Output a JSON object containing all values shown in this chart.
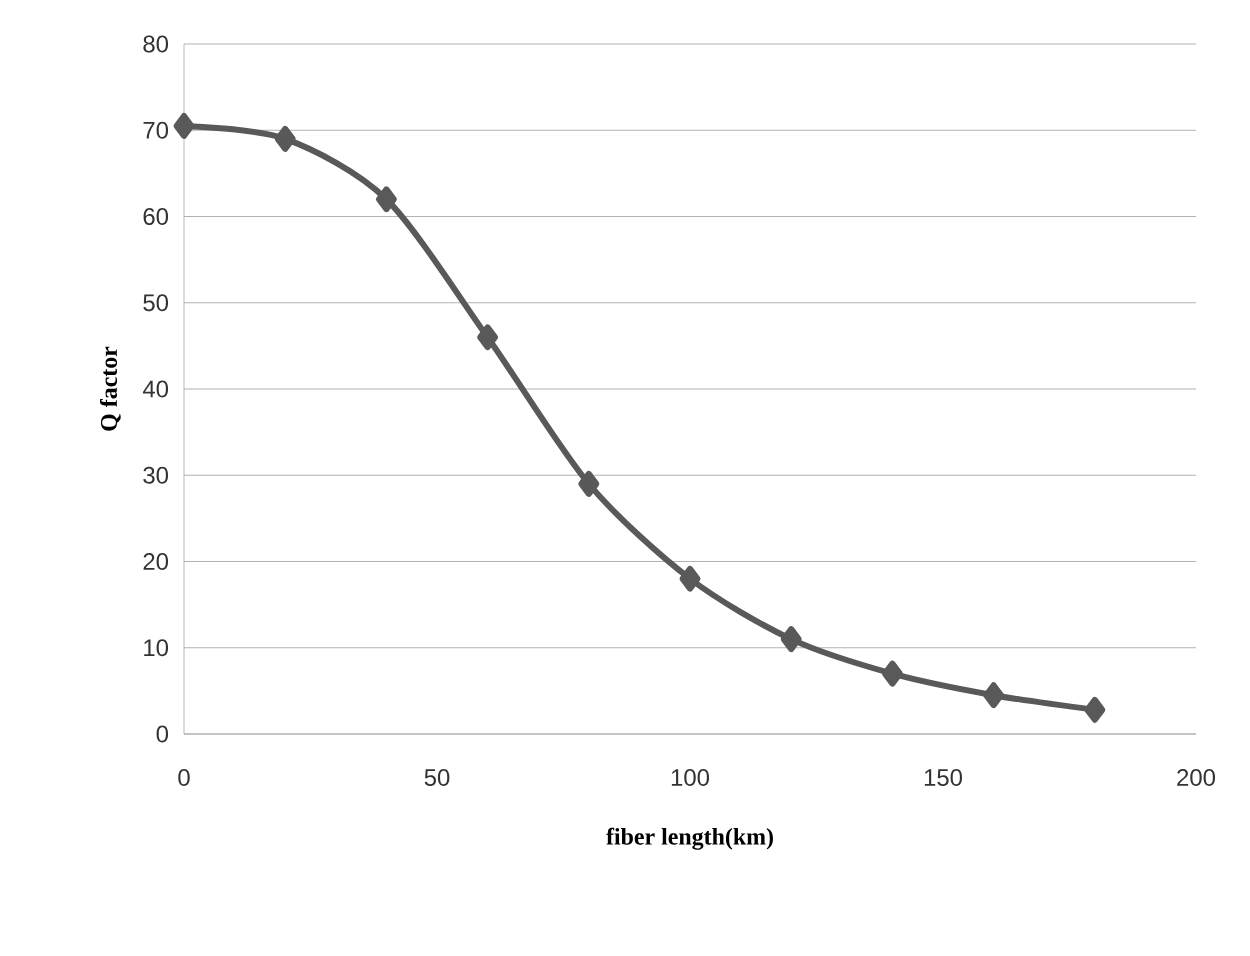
{
  "chart_data": {
    "type": "line",
    "xlabel": "fiber length(km)",
    "ylabel": "Q factor",
    "x": [
      0,
      20,
      40,
      60,
      80,
      100,
      120,
      140,
      160,
      180
    ],
    "series": [
      {
        "color": "#595959",
        "values": [
          70.5,
          69,
          62,
          46,
          29,
          18,
          11,
          7,
          4.5,
          2.8
        ]
      }
    ],
    "xlim": [
      0,
      200
    ],
    "xticks": [
      0,
      50,
      100,
      150,
      200
    ],
    "ylim": [
      0,
      80
    ],
    "yticks": [
      0,
      10,
      20,
      30,
      40,
      50,
      60,
      70,
      80
    ],
    "grid": "y",
    "marker": "diamond"
  }
}
